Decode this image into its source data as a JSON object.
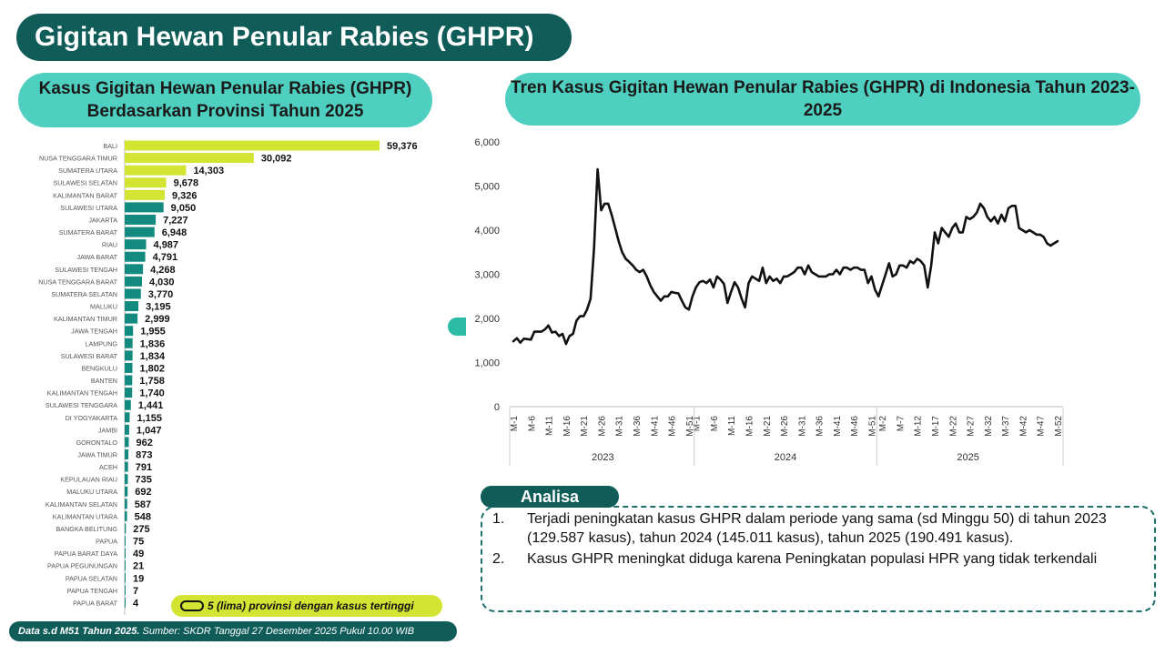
{
  "header": {
    "title": "Gigitan Hewan Penular Rabies (GHPR)"
  },
  "left_panel": {
    "title": "Kasus Gigitan Hewan Penular Rabies (GHPR) Berdasarkan Provinsi Tahun 2025"
  },
  "right_panel": {
    "title": "Tren Kasus Gigitan Hewan Penular Rabies (GHPR) di Indonesia Tahun 2023-2025"
  },
  "legend": {
    "label": "5 (lima) provinsi dengan kasus tertinggi"
  },
  "source": {
    "bold": "Data s.d M51 Tahun 2025.",
    "text": " Sumber: SKDR Tanggal 27 Desember 2025 Pukul 10.00 WIB"
  },
  "analysis": {
    "tag": "Analisa",
    "items": [
      {
        "num": "1.",
        "text": "Terjadi peningkatan kasus GHPR dalam periode yang sama (sd Minggu 50) di tahun 2023 (129.587 kasus), tahun 2024 (145.011 kasus), tahun 2025 (190.491 kasus)."
      },
      {
        "num": "2.",
        "text": "Kasus GHPR meningkat diduga karena Peningkatan populasi HPR yang tidak terkendali"
      }
    ]
  },
  "colors": {
    "highlight": "#d4e432",
    "normal": "#138a80",
    "line": "#111111",
    "dark_teal": "#0f5c59",
    "pill": "#4ecfbf"
  },
  "chart_data": [
    {
      "type": "bar",
      "orientation": "horizontal",
      "highlight_count": 5,
      "categories": [
        "BALI",
        "NUSA TENGGARA TIMUR",
        "SUMATERA UTARA",
        "SULAWESI SELATAN",
        "KALIMANTAN BARAT",
        "SULAWESI UTARA",
        "JAKARTA",
        "SUMATERA BARAT",
        "RIAU",
        "JAWA BARAT",
        "SULAWESI TENGAH",
        "NUSA TENGGARA BARAT",
        "SUMATERA SELATAN",
        "MALUKU",
        "KALIMANTAN TIMUR",
        "JAWA TENGAH",
        "LAMPUNG",
        "SULAWESI BARAT",
        "BENGKULU",
        "BANTEN",
        "KALIMANTAN TENGAH",
        "SULAWESI TENGGARA",
        "DI YOGYAKARTA",
        "JAMBI",
        "GORONTALO",
        "JAWA TIMUR",
        "ACEH",
        "KEPULAUAN RIAU",
        "MALUKU UTARA",
        "KALIMANTAN SELATAN",
        "KALIMANTAN UTARA",
        "BANGKA BELITUNG",
        "PAPUA",
        "PAPUA BARAT DAYA",
        "PAPUA PEGUNUNGAN",
        "PAPUA SELATAN",
        "PAPUA TENGAH",
        "PAPUA BARAT"
      ],
      "values": [
        59376,
        30092,
        14303,
        9678,
        9326,
        9050,
        7227,
        6948,
        4987,
        4791,
        4268,
        4030,
        3770,
        3195,
        2999,
        1955,
        1836,
        1834,
        1802,
        1758,
        1740,
        1441,
        1155,
        1047,
        962,
        873,
        791,
        735,
        692,
        587,
        548,
        275,
        75,
        49,
        21,
        19,
        7,
        4
      ],
      "value_labels": [
        "59,376",
        "30,092",
        "14,303",
        "9,678",
        "9,326",
        "9,050",
        "7,227",
        "6,948",
        "4,987",
        "4,791",
        "4,268",
        "4,030",
        "3,770",
        "3,195",
        "2,999",
        "1,955",
        "1,836",
        "1,834",
        "1,802",
        "1,758",
        "1,740",
        "1,441",
        "1,155",
        "1,047",
        "962",
        "873",
        "791",
        "735",
        "692",
        "587",
        "548",
        "275",
        "75",
        "49",
        "21",
        "19",
        "7",
        "4"
      ]
    },
    {
      "type": "line",
      "ylim": [
        0,
        6000
      ],
      "yticks": [
        "0",
        "1,000",
        "2,000",
        "3,000",
        "4,000",
        "5,000",
        "6,000"
      ],
      "ytick_values": [
        0,
        1000,
        2000,
        3000,
        4000,
        5000,
        6000
      ],
      "years": [
        "2023",
        "2024",
        "2025"
      ],
      "weeks_per_year": 52,
      "week_ticks": [
        "M-1",
        "M-6",
        "M-11",
        "M-16",
        "M-21",
        "M-26",
        "M-31",
        "M-36",
        "M-41",
        "M-46",
        "M-51"
      ],
      "week_ticks_2025": [
        "M-2",
        "M-7",
        "M-12",
        "M-17",
        "M-22",
        "M-27",
        "M-32",
        "M-37",
        "M-42",
        "M-47",
        "M-52"
      ],
      "values": [
        1480,
        1550,
        1450,
        1540,
        1530,
        1520,
        1700,
        1700,
        1700,
        1750,
        1840,
        1680,
        1700,
        1600,
        1650,
        1420,
        1600,
        1650,
        1950,
        2050,
        2050,
        2200,
        2450,
        3600,
        5380,
        4450,
        4600,
        4600,
        4350,
        4050,
        3750,
        3500,
        3350,
        3280,
        3200,
        3100,
        3050,
        3100,
        2950,
        2750,
        2600,
        2500,
        2400,
        2500,
        2500,
        2600,
        2580,
        2570,
        2400,
        2250,
        2200,
        2500,
        2700,
        2820,
        2850,
        2800,
        2880,
        2700,
        2950,
        2880,
        2780,
        2350,
        2600,
        2820,
        2700,
        2450,
        2250,
        2800,
        2950,
        2900,
        2850,
        3150,
        2800,
        2950,
        2850,
        2900,
        2800,
        2950,
        2950,
        3000,
        3050,
        3150,
        3150,
        3000,
        3200,
        3050,
        3000,
        2950,
        2950,
        2950,
        3000,
        3000,
        3100,
        3000,
        3150,
        3150,
        3100,
        3150,
        3150,
        3100,
        3100,
        2800,
        2950,
        2650,
        2500,
        2750,
        3000,
        3250,
        2950,
        3000,
        3200,
        3200,
        3150,
        3300,
        3250,
        3350,
        3300,
        3200,
        2700,
        3200,
        3950,
        3700,
        4050,
        3950,
        3850,
        4050,
        4150,
        3950,
        3950,
        4300,
        4250,
        4300,
        4400,
        4600,
        4500,
        4300,
        4200,
        4300,
        4150,
        4350,
        4200,
        4500,
        4550,
        4550,
        4050,
        4000,
        3950,
        4000,
        3950,
        3900,
        3900,
        3850,
        3700,
        3650,
        3700,
        3750
      ]
    }
  ]
}
